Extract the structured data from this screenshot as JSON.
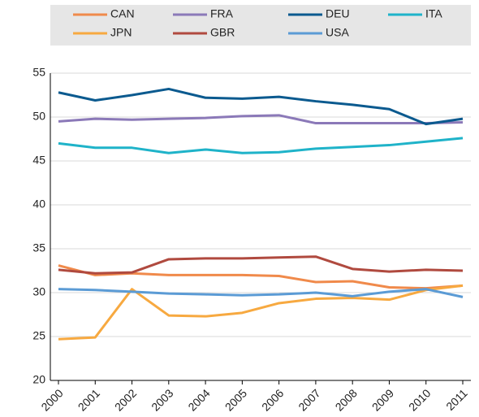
{
  "chart_data": {
    "type": "line",
    "categories": [
      "2000",
      "2001",
      "2002",
      "2003",
      "2004",
      "2005",
      "2006",
      "2007",
      "2008",
      "2009",
      "2010",
      "2011"
    ],
    "series": [
      {
        "name": "CAN",
        "color": "#f08a4b",
        "values": [
          33.1,
          32.0,
          32.2,
          32.0,
          32.0,
          32.0,
          31.9,
          31.2,
          31.3,
          30.6,
          30.5,
          30.8
        ]
      },
      {
        "name": "FRA",
        "color": "#8b79b8",
        "values": [
          49.5,
          49.8,
          49.7,
          49.8,
          49.9,
          50.1,
          50.2,
          49.3,
          49.3,
          49.3,
          49.3,
          49.4
        ]
      },
      {
        "name": "DEU",
        "color": "#0b5a8f",
        "values": [
          52.8,
          51.9,
          52.5,
          53.2,
          52.2,
          52.1,
          52.3,
          51.8,
          51.4,
          50.9,
          49.2,
          49.8
        ]
      },
      {
        "name": "ITA",
        "color": "#1fb3c9",
        "values": [
          47.0,
          46.5,
          46.5,
          45.9,
          46.3,
          45.9,
          46.0,
          46.4,
          46.6,
          46.8,
          47.2,
          47.6
        ]
      },
      {
        "name": "JPN",
        "color": "#f7a940",
        "values": [
          24.7,
          24.9,
          30.4,
          27.4,
          27.3,
          27.7,
          28.8,
          29.3,
          29.4,
          29.2,
          30.3,
          30.8
        ]
      },
      {
        "name": "GBR",
        "color": "#b04a3f",
        "values": [
          32.6,
          32.2,
          32.3,
          33.8,
          33.9,
          33.9,
          34.0,
          34.1,
          32.7,
          32.4,
          32.6,
          32.5
        ]
      },
      {
        "name": "USA",
        "color": "#5b9bd5",
        "values": [
          30.4,
          30.3,
          30.1,
          29.9,
          29.8,
          29.7,
          29.8,
          30.0,
          29.6,
          30.1,
          30.4,
          29.5
        ]
      }
    ],
    "ylim": [
      20,
      55
    ],
    "yticks": [
      20,
      25,
      30,
      35,
      40,
      45,
      50,
      55
    ],
    "grid": true
  }
}
